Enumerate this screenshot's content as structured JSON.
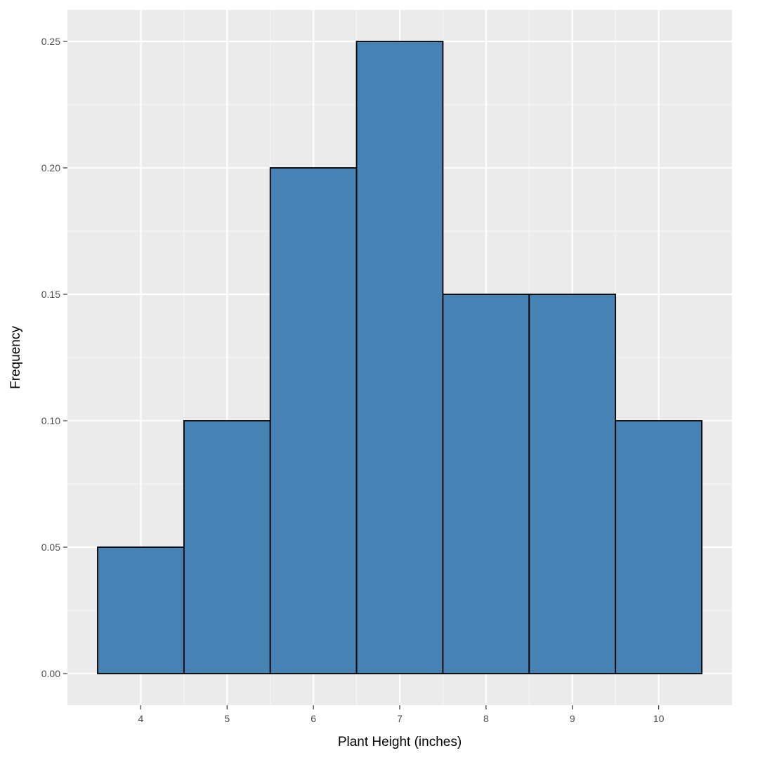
{
  "chart_data": {
    "type": "bar",
    "subtype": "histogram",
    "title": "",
    "xlabel": "Plant Height (inches)",
    "ylabel": "Frequency",
    "bins": [
      {
        "start": 3.5,
        "end": 4.5,
        "value": 0.05
      },
      {
        "start": 4.5,
        "end": 5.5,
        "value": 0.1
      },
      {
        "start": 5.5,
        "end": 6.5,
        "value": 0.2
      },
      {
        "start": 6.5,
        "end": 7.5,
        "value": 0.25
      },
      {
        "start": 7.5,
        "end": 8.5,
        "value": 0.15
      },
      {
        "start": 8.5,
        "end": 9.5,
        "value": 0.15
      },
      {
        "start": 9.5,
        "end": 10.5,
        "value": 0.1
      }
    ],
    "xlim": [
      3.15,
      10.85
    ],
    "ylim": [
      -0.0125,
      0.2625
    ],
    "x_ticks": [
      4,
      5,
      6,
      7,
      8,
      9,
      10
    ],
    "x_tick_labels": [
      "4",
      "5",
      "6",
      "7",
      "8",
      "9",
      "10"
    ],
    "y_ticks": [
      0.0,
      0.05,
      0.1,
      0.15,
      0.2,
      0.25
    ],
    "y_tick_labels": [
      "0.00",
      "0.05",
      "0.10",
      "0.15",
      "0.20",
      "0.25"
    ],
    "grid": true,
    "legend": "none",
    "colors": {
      "bar_fill": "#4682b4",
      "bar_outline": "#000000",
      "panel_background": "#ebebeb",
      "grid_major": "#ffffff",
      "grid_minor": "#f5f5f5"
    }
  }
}
